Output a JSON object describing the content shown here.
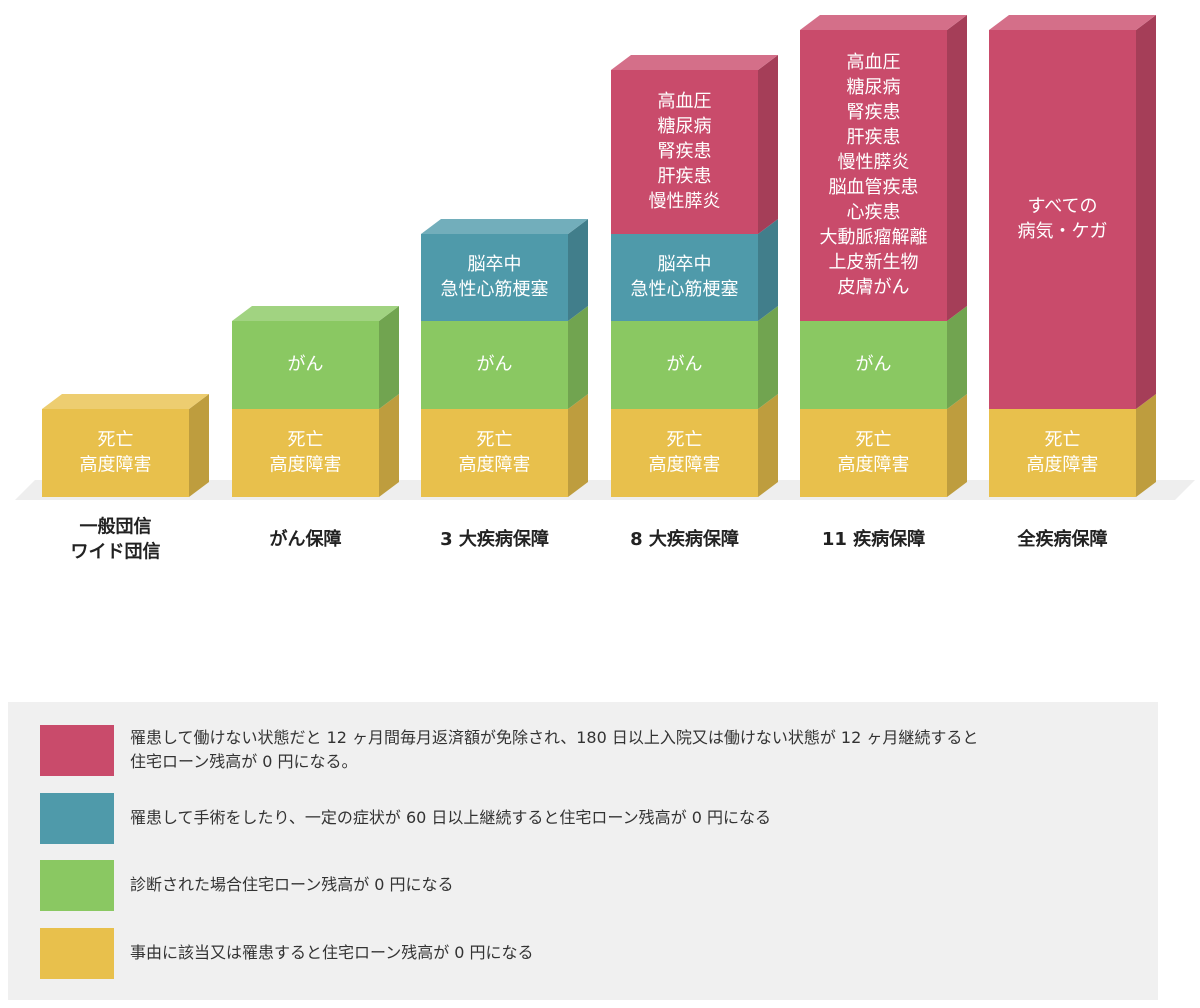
{
  "columns": [
    {
      "label": [
        "一般団信",
        "ワイド団信"
      ],
      "segments": [
        {
          "color": "#e8c04c",
          "lines": [
            "死亡",
            "高度障害"
          ]
        }
      ]
    },
    {
      "label": [
        "がん保障"
      ],
      "segments": [
        {
          "color": "#e8c04c",
          "lines": [
            "死亡",
            "高度障害"
          ]
        },
        {
          "color": "#8ac862",
          "lines": [
            "がん"
          ]
        }
      ]
    },
    {
      "label": [
        "3 大疾病保障"
      ],
      "segments": [
        {
          "color": "#e8c04c",
          "lines": [
            "死亡",
            "高度障害"
          ]
        },
        {
          "color": "#8ac862",
          "lines": [
            "がん"
          ]
        },
        {
          "color": "#4f9aaa",
          "lines": [
            "脳卒中",
            "急性心筋梗塞"
          ]
        }
      ]
    },
    {
      "label": [
        "8 大疾病保障"
      ],
      "segments": [
        {
          "color": "#e8c04c",
          "lines": [
            "死亡",
            "高度障害"
          ]
        },
        {
          "color": "#8ac862",
          "lines": [
            "がん"
          ]
        },
        {
          "color": "#4f9aaa",
          "lines": [
            "脳卒中",
            "急性心筋梗塞"
          ]
        },
        {
          "color": "#c94b6b",
          "lines": [
            "高血圧",
            "糖尿病",
            "腎疾患",
            "肝疾患",
            "慢性膵炎"
          ]
        }
      ]
    },
    {
      "label": [
        "11 疾病保障"
      ],
      "segments": [
        {
          "color": "#e8c04c",
          "lines": [
            "死亡",
            "高度障害"
          ]
        },
        {
          "color": "#8ac862",
          "lines": [
            "がん"
          ]
        },
        {
          "color": "#c94b6b",
          "lines": [
            "高血圧",
            "糖尿病",
            "腎疾患",
            "肝疾患",
            "慢性膵炎",
            "脳血管疾患",
            "心疾患",
            "大動脈瘤解離",
            "上皮新生物",
            "皮膚がん"
          ]
        }
      ]
    },
    {
      "label": [
        "全疾病保障"
      ],
      "segments": [
        {
          "color": "#e8c04c",
          "lines": [
            "死亡",
            "高度障害"
          ]
        },
        {
          "color": "#c94b6b",
          "lines": [
            "すべての",
            "病気・ケガ"
          ]
        }
      ]
    }
  ],
  "legend": [
    {
      "color": "#c94b6b",
      "lines": [
        "罹患して働けない状態だと 12 ヶ月間毎月返済額が免除され、180 日以上入院又は働けない状態が 12 ヶ月継続すると",
        "住宅ローン残高が 0 円になる。"
      ]
    },
    {
      "color": "#4f9aaa",
      "lines": [
        "罹患して手術をしたり、一定の症状が 60 日以上継続すると住宅ローン残高が 0 円になる"
      ]
    },
    {
      "color": "#8ac862",
      "lines": [
        "診断された場合住宅ローン残高が 0 円になる"
      ]
    },
    {
      "color": "#e8c04c",
      "lines": [
        "事由に該当又は罹患すると住宅ローン残高が 0 円になる"
      ]
    }
  ]
}
